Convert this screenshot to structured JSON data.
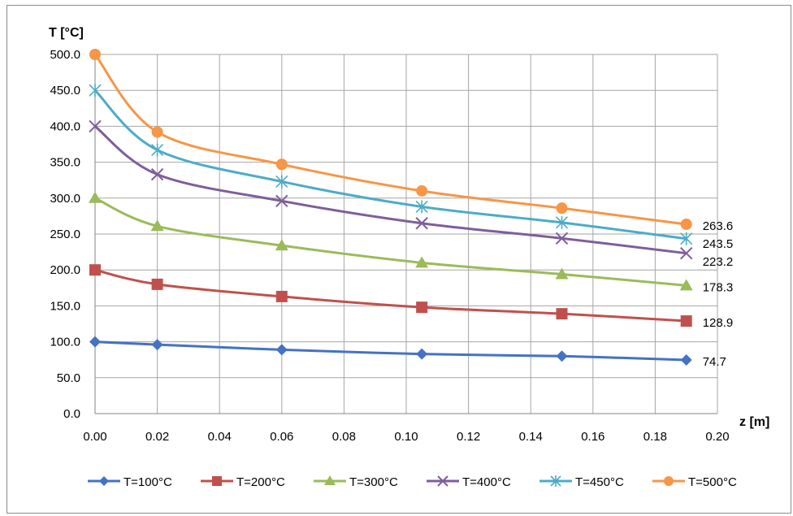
{
  "chart_data": {
    "type": "line",
    "title": "",
    "xlabel": "z [m]",
    "ylabel": "T [°C]",
    "xlim": [
      0,
      0.2
    ],
    "ylim": [
      0,
      500
    ],
    "x_ticks": [
      "0.00",
      "0.02",
      "0.04",
      "0.06",
      "0.08",
      "0.10",
      "0.12",
      "0.14",
      "0.16",
      "0.18",
      "0.20"
    ],
    "y_ticks": [
      "0.0",
      "50.0",
      "100.0",
      "150.0",
      "200.0",
      "250.0",
      "300.0",
      "350.0",
      "400.0",
      "450.0",
      "500.0"
    ],
    "grid": true,
    "smooth": true,
    "legend_position": "bottom",
    "x": [
      0,
      0.02,
      0.06,
      0.105,
      0.15,
      0.19
    ],
    "series": [
      {
        "name": "T=100°C",
        "color": "#4472C4",
        "marker": "diamond",
        "values": [
          100,
          96,
          89,
          83,
          80,
          74.7
        ],
        "end_label": "74.7"
      },
      {
        "name": "T=200°C",
        "color": "#C0504D",
        "marker": "square",
        "values": [
          200,
          180,
          163,
          148,
          139,
          128.9
        ],
        "end_label": "128.9"
      },
      {
        "name": "T=300°C",
        "color": "#9BBB59",
        "marker": "triangle",
        "values": [
          300,
          261,
          234,
          210,
          194,
          178.3
        ],
        "end_label": "178.3"
      },
      {
        "name": "T=400°C",
        "color": "#7E5E9B",
        "marker": "x",
        "values": [
          400,
          333,
          296,
          265,
          244,
          223.2
        ],
        "end_label": "223.2"
      },
      {
        "name": "T=450°C",
        "color": "#4BACC6",
        "marker": "star",
        "values": [
          450,
          367,
          323,
          288,
          266,
          243.5
        ],
        "end_label": "243.5"
      },
      {
        "name": "T=500°C",
        "color": "#F79646",
        "marker": "circle",
        "values": [
          500,
          392,
          347,
          310,
          286,
          263.6
        ],
        "end_label": "263.6"
      }
    ]
  }
}
